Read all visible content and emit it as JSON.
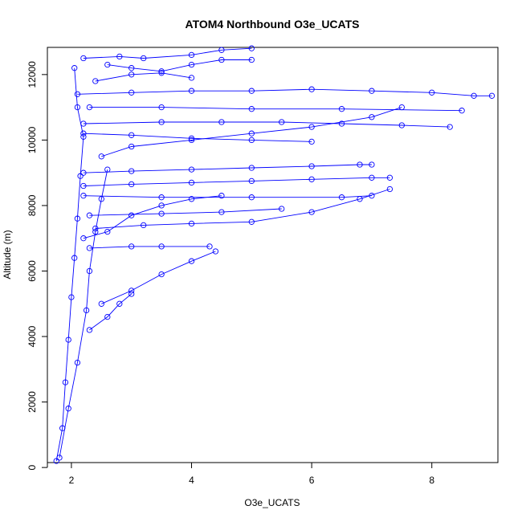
{
  "chart_data": {
    "type": "scatter",
    "title": "ATOM4 Northbound O3e_UCATS",
    "xlabel": "O3e_UCATS",
    "ylabel": "Altitude (m)",
    "xlim": [
      1.6,
      9.1
    ],
    "ylim": [
      150,
      12830
    ],
    "xticks": [
      2,
      4,
      6,
      8
    ],
    "yticks": [
      0,
      2000,
      4000,
      6000,
      8000,
      10000,
      12000
    ],
    "grid": false,
    "color": "#0000ff",
    "point_style": "open-circle",
    "series": [
      {
        "values": [
          [
            1.75,
            200
          ],
          [
            1.85,
            1200
          ],
          [
            1.9,
            2600
          ],
          [
            1.95,
            3900
          ],
          [
            2.0,
            5200
          ],
          [
            2.05,
            6400
          ],
          [
            2.1,
            7600
          ],
          [
            2.15,
            8900
          ],
          [
            2.2,
            10100
          ],
          [
            2.1,
            11000
          ],
          [
            2.05,
            12200
          ]
        ]
      },
      {
        "values": [
          [
            1.8,
            300
          ],
          [
            1.95,
            1800
          ],
          [
            2.1,
            3200
          ],
          [
            2.25,
            4800
          ],
          [
            2.3,
            6000
          ],
          [
            2.4,
            7200
          ],
          [
            2.5,
            8200
          ],
          [
            2.6,
            9100
          ]
        ]
      },
      {
        "values": [
          [
            2.2,
            9000
          ],
          [
            3.0,
            9050
          ],
          [
            4.0,
            9100
          ],
          [
            5.0,
            9150
          ],
          [
            6.0,
            9200
          ],
          [
            6.8,
            9250
          ],
          [
            7.0,
            9250
          ]
        ]
      },
      {
        "values": [
          [
            2.1,
            11400
          ],
          [
            3.0,
            11450
          ],
          [
            4.0,
            11500
          ],
          [
            5.0,
            11500
          ],
          [
            6.0,
            11550
          ],
          [
            7.0,
            11500
          ],
          [
            8.0,
            11450
          ],
          [
            8.7,
            11350
          ],
          [
            9.0,
            11350
          ]
        ]
      },
      {
        "values": [
          [
            2.3,
            11000
          ],
          [
            3.5,
            11000
          ],
          [
            5.0,
            10950
          ],
          [
            6.5,
            10950
          ],
          [
            8.5,
            10900
          ]
        ]
      },
      {
        "values": [
          [
            2.2,
            10500
          ],
          [
            3.5,
            10550
          ],
          [
            4.5,
            10550
          ],
          [
            5.5,
            10550
          ],
          [
            6.5,
            10500
          ],
          [
            7.5,
            10450
          ],
          [
            8.3,
            10400
          ]
        ]
      },
      {
        "values": [
          [
            2.2,
            12500
          ],
          [
            2.8,
            12550
          ],
          [
            3.2,
            12500
          ],
          [
            4.0,
            12600
          ],
          [
            4.5,
            12750
          ],
          [
            5.0,
            12800
          ]
        ]
      },
      {
        "values": [
          [
            2.2,
            10200
          ],
          [
            3.0,
            10150
          ],
          [
            4.0,
            10050
          ],
          [
            5.0,
            10000
          ],
          [
            6.0,
            9950
          ]
        ]
      },
      {
        "values": [
          [
            2.2,
            8600
          ],
          [
            3.0,
            8650
          ],
          [
            4.0,
            8700
          ],
          [
            5.0,
            8750
          ],
          [
            6.0,
            8800
          ],
          [
            7.0,
            8850
          ],
          [
            7.3,
            8850
          ]
        ]
      },
      {
        "values": [
          [
            2.2,
            8300
          ],
          [
            3.5,
            8250
          ],
          [
            5.0,
            8250
          ],
          [
            6.5,
            8250
          ],
          [
            7.0,
            8300
          ]
        ]
      },
      {
        "values": [
          [
            2.4,
            7300
          ],
          [
            3.2,
            7400
          ],
          [
            4.0,
            7450
          ],
          [
            5.0,
            7500
          ],
          [
            6.0,
            7800
          ],
          [
            6.8,
            8200
          ],
          [
            7.3,
            8500
          ]
        ]
      },
      {
        "values": [
          [
            2.3,
            7700
          ],
          [
            3.5,
            7750
          ],
          [
            4.5,
            7800
          ],
          [
            5.5,
            7900
          ]
        ]
      },
      {
        "values": [
          [
            2.3,
            6700
          ],
          [
            3.0,
            6750
          ],
          [
            3.5,
            6750
          ],
          [
            4.3,
            6750
          ]
        ]
      },
      {
        "values": [
          [
            2.5,
            5000
          ],
          [
            3.0,
            5400
          ],
          [
            3.5,
            5900
          ],
          [
            4.0,
            6300
          ],
          [
            4.4,
            6600
          ]
        ]
      },
      {
        "values": [
          [
            2.3,
            4200
          ],
          [
            2.6,
            4600
          ],
          [
            2.8,
            5000
          ],
          [
            3.0,
            5300
          ]
        ]
      },
      {
        "values": [
          [
            2.5,
            9500
          ],
          [
            3.0,
            9800
          ],
          [
            4.0,
            10000
          ],
          [
            5.0,
            10200
          ],
          [
            6.0,
            10400
          ],
          [
            7.0,
            10700
          ],
          [
            7.5,
            11000
          ]
        ]
      },
      {
        "values": [
          [
            2.6,
            12300
          ],
          [
            3.0,
            12200
          ],
          [
            3.5,
            12100
          ],
          [
            4.0,
            12300
          ],
          [
            4.5,
            12450
          ],
          [
            5.0,
            12450
          ]
        ]
      },
      {
        "values": [
          [
            2.4,
            11800
          ],
          [
            3.0,
            12000
          ],
          [
            3.5,
            12050
          ],
          [
            4.0,
            11900
          ]
        ]
      },
      {
        "values": [
          [
            2.2,
            7000
          ],
          [
            2.6,
            7200
          ],
          [
            3.0,
            7700
          ],
          [
            3.5,
            8000
          ],
          [
            4.0,
            8200
          ],
          [
            4.5,
            8300
          ]
        ]
      }
    ]
  }
}
